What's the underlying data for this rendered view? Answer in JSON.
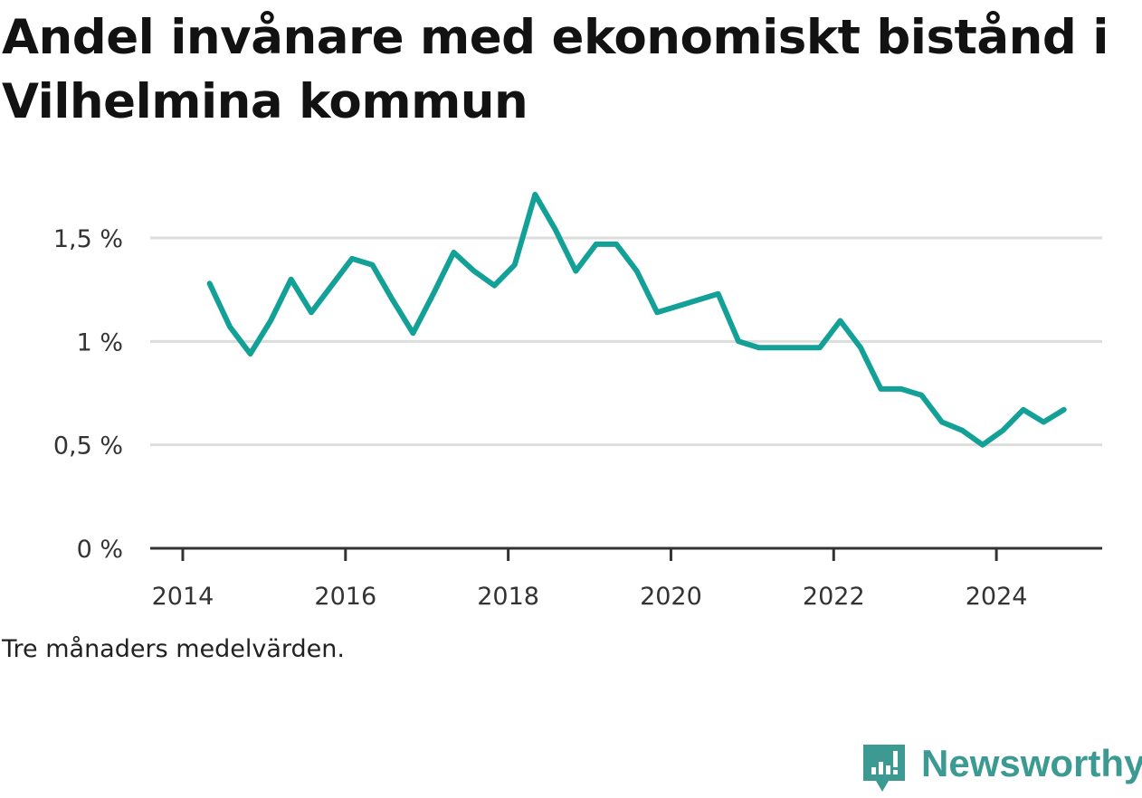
{
  "title": "Andel invånare med ekonomiskt bistånd i Vilhelmina kommun",
  "note": "Tre månaders medelvärden.",
  "brand": {
    "name": "Newsworthy",
    "icon": "newsworthy-logo-icon",
    "color": "#3d9a93"
  },
  "colors": {
    "line": "#13a197",
    "grid": "#dddddd",
    "axis": "#333333"
  },
  "chart_data": {
    "type": "line",
    "title": "Andel invånare med ekonomiskt bistånd i Vilhelmina kommun",
    "xlabel": "",
    "ylabel": "",
    "xlim": [
      2013.6,
      2025.3
    ],
    "ylim": [
      0,
      1.5
    ],
    "grid": true,
    "x_ticks": [
      2014,
      2016,
      2018,
      2020,
      2022,
      2024
    ],
    "x_tick_labels": [
      "2014",
      "2016",
      "2018",
      "2020",
      "2022",
      "2024"
    ],
    "y_ticks": [
      0,
      0.5,
      1,
      1.5
    ],
    "y_tick_labels": [
      "0 %",
      "0,5 %",
      "1 %",
      "1,5 %"
    ],
    "series": [
      {
        "x": [
          2014.33,
          2014.58,
          2014.83,
          2015.08,
          2015.33,
          2015.58,
          2015.83,
          2016.08,
          2016.33,
          2016.58,
          2016.83,
          2017.08,
          2017.33,
          2017.58,
          2017.83,
          2018.08,
          2018.33,
          2018.58,
          2018.83,
          2019.08,
          2019.33,
          2019.58,
          2019.83,
          2020.08,
          2020.33,
          2020.58,
          2020.83,
          2021.08,
          2021.33,
          2021.58,
          2021.83,
          2022.08,
          2022.33,
          2022.58,
          2022.83,
          2023.08,
          2023.33,
          2023.58,
          2023.83,
          2024.08,
          2024.33,
          2024.58,
          2024.83
        ],
        "values": [
          1.28,
          1.07,
          0.94,
          1.1,
          1.3,
          1.14,
          1.27,
          1.4,
          1.37,
          1.2,
          1.04,
          1.23,
          1.43,
          1.34,
          1.27,
          1.37,
          1.71,
          1.54,
          1.34,
          1.47,
          1.47,
          1.34,
          1.14,
          1.17,
          1.2,
          1.23,
          1.0,
          0.97,
          0.97,
          0.97,
          0.97,
          1.1,
          0.97,
          0.77,
          0.77,
          0.74,
          0.61,
          0.57,
          0.5,
          0.57,
          0.67,
          0.61,
          0.67
        ]
      }
    ]
  }
}
